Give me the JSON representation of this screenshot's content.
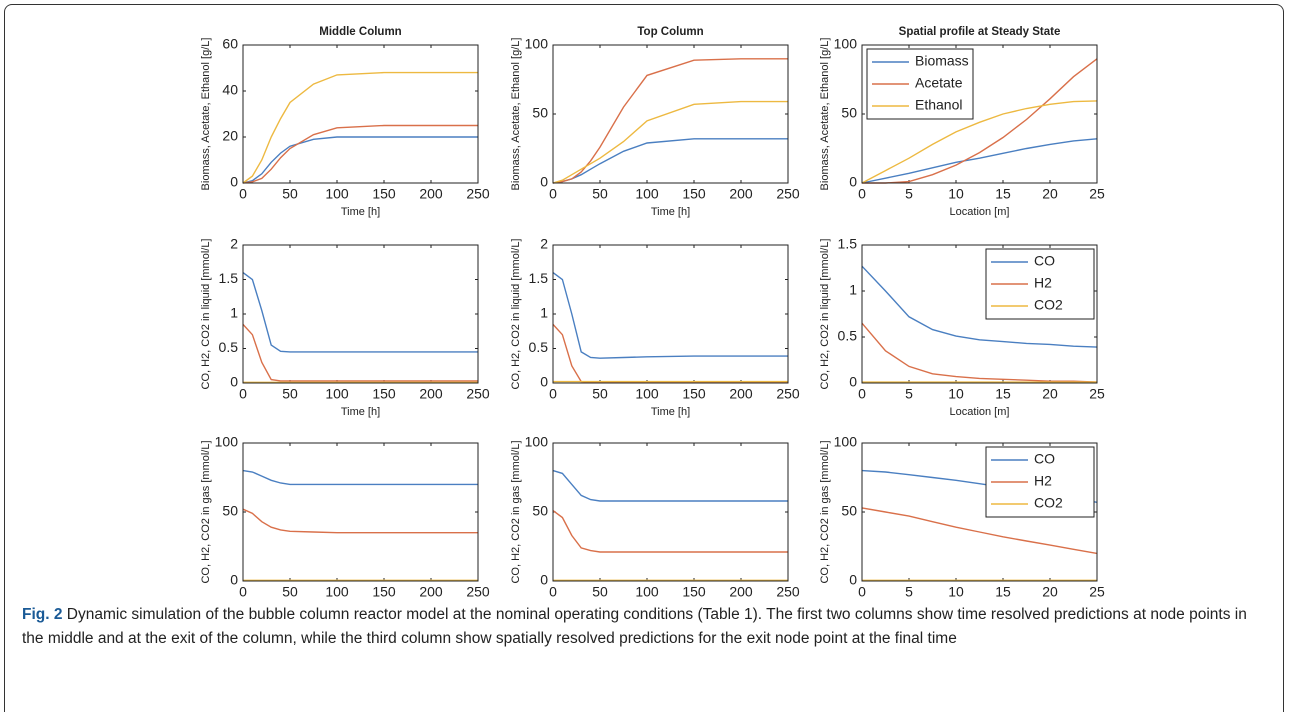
{
  "chart_data": [
    {
      "type": "line",
      "title": "Middle Column",
      "xlabel": "Time [h]",
      "ylabel": "Biomass, Acetate, Ethanol [g/L]",
      "x": [
        0,
        10,
        20,
        30,
        40,
        50,
        75,
        100,
        150,
        200,
        250
      ],
      "xlim": [
        0,
        250
      ],
      "xticks": [
        0,
        50,
        100,
        150,
        200,
        250
      ],
      "ylim": [
        0,
        60
      ],
      "yticks": [
        0,
        20,
        40,
        60
      ],
      "series": [
        {
          "color": "#4a7fc1",
          "values": [
            0,
            1,
            4,
            9,
            13,
            16,
            19,
            20,
            20,
            20,
            20
          ]
        },
        {
          "color": "#d9704a",
          "values": [
            0,
            0.5,
            2,
            6,
            11,
            15,
            21,
            24,
            25,
            25,
            25
          ]
        },
        {
          "color": "#edb941",
          "values": [
            0,
            3,
            10,
            20,
            28,
            35,
            43,
            47,
            48,
            48,
            48
          ]
        }
      ]
    },
    {
      "type": "line",
      "title": "Top Column",
      "xlabel": "Time [h]",
      "ylabel": "Biomass, Acetate, Ethanol [g/L]",
      "x": [
        0,
        10,
        20,
        30,
        40,
        50,
        75,
        100,
        150,
        200,
        250
      ],
      "xlim": [
        0,
        250
      ],
      "xticks": [
        0,
        50,
        100,
        150,
        200,
        250
      ],
      "ylim": [
        0,
        100
      ],
      "yticks": [
        0,
        50,
        100
      ],
      "series": [
        {
          "color": "#4a7fc1",
          "values": [
            0,
            1,
            3,
            6,
            10,
            14,
            23,
            29,
            32,
            32,
            32
          ]
        },
        {
          "color": "#d9704a",
          "values": [
            0,
            1,
            3,
            8,
            16,
            26,
            55,
            78,
            89,
            90,
            90
          ]
        },
        {
          "color": "#edb941",
          "values": [
            0,
            2,
            6,
            10,
            14,
            18,
            30,
            45,
            57,
            59,
            59
          ]
        }
      ]
    },
    {
      "type": "line",
      "title": "Spatial profile at Steady State",
      "xlabel": "Location [m]",
      "ylabel": "Biomass, Acetate, Ethanol [g/L]",
      "legend": "northwest",
      "x": [
        0,
        2.5,
        5,
        7.5,
        10,
        12.5,
        15,
        17.5,
        20,
        22.5,
        25
      ],
      "xlim": [
        0,
        25
      ],
      "xticks": [
        0,
        5,
        10,
        15,
        20,
        25
      ],
      "ylim": [
        0,
        100
      ],
      "yticks": [
        0,
        50,
        100
      ],
      "series": [
        {
          "name": "Biomass",
          "color": "#4a7fc1",
          "values": [
            0,
            3.5,
            7,
            11,
            15,
            18,
            21.5,
            25,
            28,
            30.5,
            32
          ]
        },
        {
          "name": "Acetate",
          "color": "#d9704a",
          "values": [
            0,
            0,
            1,
            6,
            13,
            22,
            33,
            46,
            61,
            77,
            90
          ]
        },
        {
          "name": "Ethanol",
          "color": "#edb941",
          "values": [
            0,
            9,
            18,
            28,
            37,
            44,
            50,
            54,
            57,
            59,
            59.5
          ]
        }
      ]
    },
    {
      "type": "line",
      "xlabel": "Time [h]",
      "ylabel": "CO, H2, CO2 in liquid [mmol/L]",
      "x": [
        0,
        10,
        20,
        30,
        40,
        50,
        75,
        100,
        150,
        200,
        250
      ],
      "xlim": [
        0,
        250
      ],
      "xticks": [
        0,
        50,
        100,
        150,
        200,
        250
      ],
      "ylim": [
        0,
        2
      ],
      "yticks": [
        0,
        0.5,
        1,
        1.5,
        2
      ],
      "series": [
        {
          "color": "#4a7fc1",
          "values": [
            1.6,
            1.5,
            1.05,
            0.55,
            0.46,
            0.45,
            0.45,
            0.45,
            0.45,
            0.45,
            0.45
          ]
        },
        {
          "color": "#d9704a",
          "values": [
            0.85,
            0.7,
            0.3,
            0.05,
            0.03,
            0.03,
            0.03,
            0.03,
            0.03,
            0.03,
            0.03
          ]
        },
        {
          "color": "#edb941",
          "values": [
            0.01,
            0.01,
            0.01,
            0.01,
            0.01,
            0.01,
            0.01,
            0.01,
            0.01,
            0.01,
            0.01
          ]
        }
      ]
    },
    {
      "type": "line",
      "xlabel": "Time [h]",
      "ylabel": "CO, H2, CO2 in liquid [mmol/L]",
      "x": [
        0,
        10,
        20,
        30,
        40,
        50,
        75,
        100,
        150,
        200,
        250
      ],
      "xlim": [
        0,
        250
      ],
      "xticks": [
        0,
        50,
        100,
        150,
        200,
        250
      ],
      "ylim": [
        0,
        2
      ],
      "yticks": [
        0,
        0.5,
        1,
        1.5,
        2
      ],
      "series": [
        {
          "color": "#4a7fc1",
          "values": [
            1.6,
            1.5,
            1.0,
            0.45,
            0.37,
            0.36,
            0.37,
            0.38,
            0.39,
            0.39,
            0.39
          ]
        },
        {
          "color": "#d9704a",
          "values": [
            0.85,
            0.7,
            0.25,
            0.02,
            0.01,
            0.01,
            0.01,
            0.01,
            0.01,
            0.01,
            0.01
          ]
        },
        {
          "color": "#edb941",
          "values": [
            0.02,
            0.02,
            0.02,
            0.02,
            0.02,
            0.02,
            0.02,
            0.02,
            0.02,
            0.02,
            0.02
          ]
        }
      ]
    },
    {
      "type": "line",
      "xlabel": "Location [m]",
      "ylabel": "CO, H2, CO2 in liquid [mmol/L]",
      "legend": "northeast",
      "x": [
        0,
        2.5,
        5,
        7.5,
        10,
        12.5,
        15,
        17.5,
        20,
        22.5,
        25
      ],
      "xlim": [
        0,
        25
      ],
      "xticks": [
        0,
        5,
        10,
        15,
        20,
        25
      ],
      "ylim": [
        0,
        1.5
      ],
      "yticks": [
        0,
        0.5,
        1,
        1.5
      ],
      "series": [
        {
          "name": "CO",
          "color": "#4a7fc1",
          "values": [
            1.27,
            1.0,
            0.72,
            0.58,
            0.51,
            0.47,
            0.45,
            0.43,
            0.42,
            0.4,
            0.39
          ]
        },
        {
          "name": "H2",
          "color": "#d9704a",
          "values": [
            0.65,
            0.35,
            0.18,
            0.1,
            0.07,
            0.05,
            0.04,
            0.03,
            0.02,
            0.02,
            0.01
          ]
        },
        {
          "name": "CO2",
          "color": "#edb941",
          "values": [
            0.01,
            0.01,
            0.01,
            0.01,
            0.01,
            0.01,
            0.01,
            0.01,
            0.01,
            0.01,
            0.01
          ]
        }
      ]
    },
    {
      "type": "line",
      "xlabel": "Time [h]",
      "ylabel": "CO, H2, CO2 in gas [mmol/L]",
      "x": [
        0,
        10,
        20,
        30,
        40,
        50,
        75,
        100,
        150,
        200,
        250
      ],
      "xlim": [
        0,
        250
      ],
      "xticks": [
        0,
        50,
        100,
        150,
        200,
        250
      ],
      "ylim": [
        0,
        100
      ],
      "yticks": [
        0,
        50,
        100
      ],
      "series": [
        {
          "color": "#4a7fc1",
          "values": [
            80,
            79,
            76,
            73,
            71,
            70,
            70,
            70,
            70,
            70,
            70
          ]
        },
        {
          "color": "#d9704a",
          "values": [
            52,
            49,
            43,
            39,
            37,
            36,
            35.5,
            35,
            35,
            35,
            35
          ]
        },
        {
          "color": "#edb941",
          "values": [
            0.5,
            0.5,
            0.5,
            0.5,
            0.5,
            0.5,
            0.5,
            0.5,
            0.5,
            0.5,
            0.5
          ]
        }
      ]
    },
    {
      "type": "line",
      "xlabel": "Time [h]",
      "ylabel": "CO, H2, CO2 in gas [mmol/L]",
      "x": [
        0,
        10,
        20,
        30,
        40,
        50,
        75,
        100,
        150,
        200,
        250
      ],
      "xlim": [
        0,
        250
      ],
      "xticks": [
        0,
        50,
        100,
        150,
        200,
        250
      ],
      "ylim": [
        0,
        100
      ],
      "yticks": [
        0,
        50,
        100
      ],
      "series": [
        {
          "color": "#4a7fc1",
          "values": [
            80,
            78,
            70,
            62,
            59,
            58,
            58,
            58,
            58,
            58,
            58
          ]
        },
        {
          "color": "#d9704a",
          "values": [
            51,
            46,
            33,
            24,
            22,
            21,
            21,
            21,
            21,
            21,
            21
          ]
        },
        {
          "color": "#edb941",
          "values": [
            0.5,
            0.5,
            0.5,
            0.5,
            0.5,
            0.5,
            0.5,
            0.5,
            0.5,
            0.5,
            0.5
          ]
        }
      ]
    },
    {
      "type": "line",
      "xlabel": "Location [m]",
      "ylabel": "CO, H2, CO2 in gas [mmol/L]",
      "legend": "northeast",
      "x": [
        0,
        2.5,
        5,
        7.5,
        10,
        12.5,
        15,
        17.5,
        20,
        22.5,
        25
      ],
      "xlim": [
        0,
        25
      ],
      "xticks": [
        0,
        5,
        10,
        15,
        20,
        25
      ],
      "ylim": [
        0,
        100
      ],
      "yticks": [
        0,
        50,
        100
      ],
      "series": [
        {
          "name": "CO",
          "color": "#4a7fc1",
          "values": [
            80,
            79,
            77,
            75,
            73,
            70.5,
            68,
            65.5,
            63,
            60,
            57
          ]
        },
        {
          "name": "H2",
          "color": "#d9704a",
          "values": [
            53,
            50,
            47,
            43,
            39,
            35.5,
            32,
            29,
            26,
            23,
            20
          ]
        },
        {
          "name": "CO2",
          "color": "#edb941",
          "values": [
            0.5,
            0.5,
            0.5,
            0.5,
            0.5,
            0.5,
            0.5,
            0.5,
            0.5,
            0.5,
            0.5
          ]
        }
      ]
    }
  ],
  "caption": {
    "label": "Fig. 2",
    "text": "Dynamic simulation of the bubble column reactor model at the nominal operating conditions (Table 1). The first two columns show time resolved predictions at node points in the middle and at the exit of the column, while the third column show spatially resolved predictions for the exit node point at the final time"
  }
}
